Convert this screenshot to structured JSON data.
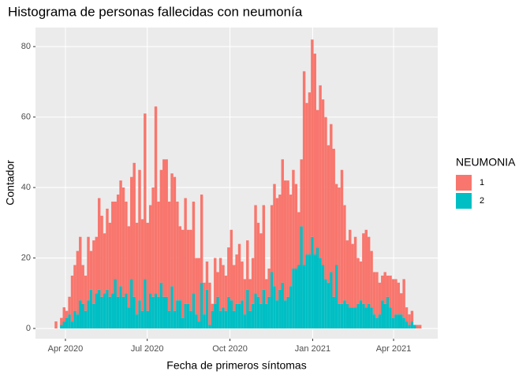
{
  "chart_data": {
    "type": "histogram",
    "title": "Histograma de personas fallecidas con neumonía",
    "x_label": "Fecha de primeros síntomas",
    "y_label": "Contador",
    "legend_title": "NEUMONIA",
    "bins": [
      18341,
      18344,
      18347,
      18350,
      18353,
      18356,
      18359,
      18362,
      18365,
      18368,
      18371,
      18374,
      18377,
      18380,
      18383,
      18386,
      18389,
      18392,
      18395,
      18398,
      18401,
      18404,
      18407,
      18410,
      18413,
      18416,
      18419,
      18422,
      18425,
      18428,
      18431,
      18434,
      18437,
      18440,
      18443,
      18446,
      18449,
      18452,
      18455,
      18458,
      18461,
      18464,
      18467,
      18470,
      18473,
      18476,
      18479,
      18482,
      18485,
      18488,
      18491,
      18494,
      18497,
      18500,
      18503,
      18506,
      18509,
      18512,
      18515,
      18518,
      18521,
      18524,
      18527,
      18530,
      18533,
      18536,
      18539,
      18542,
      18545,
      18548,
      18551,
      18554,
      18557,
      18560,
      18563,
      18566,
      18569,
      18572,
      18575,
      18578,
      18581,
      18584,
      18587,
      18590,
      18593,
      18596,
      18599,
      18602,
      18605,
      18608,
      18611,
      18614,
      18617,
      18620,
      18623,
      18626,
      18629,
      18632,
      18635,
      18638,
      18641,
      18644,
      18647,
      18650,
      18653,
      18656,
      18659,
      18662,
      18665,
      18668,
      18671,
      18674,
      18677,
      18680,
      18683,
      18686,
      18689,
      18692,
      18695,
      18698,
      18701,
      18704,
      18707,
      18710,
      18713,
      18716,
      18719,
      18722,
      18725,
      18728,
      18731,
      18734,
      18737,
      18740,
      18743,
      18746,
      18749
    ],
    "series": [
      {
        "name": "1",
        "color": "#F8766D",
        "values": [
          2,
          0,
          2,
          4,
          2,
          5,
          13,
          13,
          18,
          18,
          11,
          10,
          18,
          11,
          18,
          16,
          26,
          23,
          17,
          23,
          21,
          26,
          22,
          29,
          30,
          31,
          26,
          23,
          29,
          38,
          26,
          37,
          26,
          47,
          25,
          25,
          31,
          53,
          27,
          32,
          39,
          39,
          31,
          32,
          38,
          28,
          21,
          25,
          30,
          21,
          23,
          26,
          16,
          18,
          25,
          9,
          8,
          12,
          2,
          13,
          7,
          15,
          12,
          10,
          14,
          20,
          13,
          14,
          17,
          11,
          10,
          14,
          9,
          13,
          25,
          21,
          20,
          24,
          7,
          8,
          19,
          29,
          29,
          27,
          35,
          34,
          33,
          26,
          28,
          24,
          15,
          19,
          55,
          43,
          46,
          56,
          57,
          39,
          49,
          47,
          46,
          39,
          42,
          42,
          23,
          33,
          38,
          27,
          18,
          22,
          18,
          20,
          13,
          11,
          20,
          22,
          19,
          16,
          12,
          13,
          9,
          7,
          9,
          6,
          9,
          11,
          10,
          9,
          6,
          11,
          4,
          3,
          3,
          0,
          1,
          1
        ]
      },
      {
        "name": "2",
        "color": "#00BFC4",
        "values": [
          0,
          0,
          1,
          2,
          3,
          4,
          2,
          5,
          4,
          8,
          7,
          5,
          8,
          11,
          7,
          10,
          11,
          9,
          10,
          11,
          9,
          10,
          14,
          9,
          12,
          9,
          10,
          6,
          14,
          9,
          4,
          8,
          5,
          14,
          5,
          10,
          9,
          10,
          9,
          13,
          9,
          9,
          5,
          12,
          5,
          8,
          8,
          3,
          7,
          7,
          5,
          10,
          4,
          2,
          13,
          4,
          11,
          1,
          5,
          7,
          9,
          5,
          6,
          5,
          9,
          8,
          5,
          7,
          7,
          8,
          4,
          11,
          5,
          7,
          10,
          9,
          7,
          11,
          7,
          9,
          16,
          12,
          8,
          11,
          13,
          8,
          9,
          12,
          17,
          17,
          18,
          29,
          18,
          21,
          21,
          26,
          21,
          23,
          20,
          18,
          14,
          13,
          16,
          9,
          18,
          7,
          7,
          8,
          7,
          6,
          6,
          6,
          7,
          8,
          7,
          6,
          7,
          6,
          4,
          3,
          4,
          8,
          7,
          9,
          6,
          3,
          4,
          4,
          4,
          3,
          2,
          1,
          2,
          1,
          0,
          0
        ]
      }
    ],
    "xlim": [
      18319.7,
      18767.1
    ],
    "xticks": [
      {
        "value": 18353,
        "label": "Apr 2020"
      },
      {
        "value": 18444,
        "label": "Jul 2020"
      },
      {
        "value": 18536,
        "label": "Oct 2020"
      },
      {
        "value": 18628,
        "label": "Jan 2021"
      },
      {
        "value": 18718,
        "label": "Apr 2021"
      }
    ],
    "ylim": [
      -2.9,
      85.4
    ],
    "yticks": [
      0,
      20,
      40,
      60,
      80
    ],
    "grid": true
  }
}
